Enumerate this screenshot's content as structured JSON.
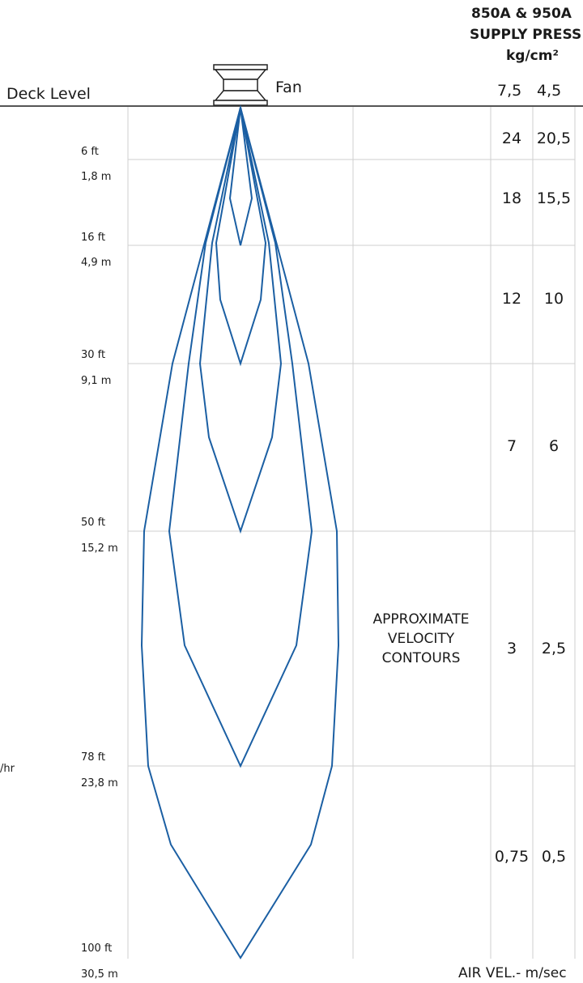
{
  "header": {
    "model": "850A & 950A",
    "supply_pressure": "SUPPLY PRESS",
    "unit": "kg/cm²",
    "pressures": [
      "7,5",
      "4,5"
    ]
  },
  "deck_label": "Deck Level",
  "fan_label": "Fan",
  "depths": [
    {
      "ft": "6 ft",
      "m": "1,8 m"
    },
    {
      "ft": "16 ft",
      "m": "4,9 m"
    },
    {
      "ft": "30 ft",
      "m": "9,1 m"
    },
    {
      "ft": "50 ft",
      "m": "15,2 m"
    },
    {
      "ft": "78 ft",
      "m": "23,8 m"
    },
    {
      "ft": "100 ft",
      "m": "30,5 m"
    }
  ],
  "velocities": [
    [
      "24",
      "20,5"
    ],
    [
      "18",
      "15,5"
    ],
    [
      "12",
      "10"
    ],
    [
      "7",
      "6"
    ],
    [
      "3",
      "2,5"
    ],
    [
      "0,75",
      "0,5"
    ]
  ],
  "contour_note": [
    "APPROXIMATE",
    "VELOCITY",
    "CONTOURS"
  ],
  "side_fragment": "/hr",
  "axis_label": "AIR VEL.- m/sec",
  "colors": {
    "contour": "#1b5fa3",
    "grid": "#cfcfcf",
    "deck": "#555555"
  }
}
